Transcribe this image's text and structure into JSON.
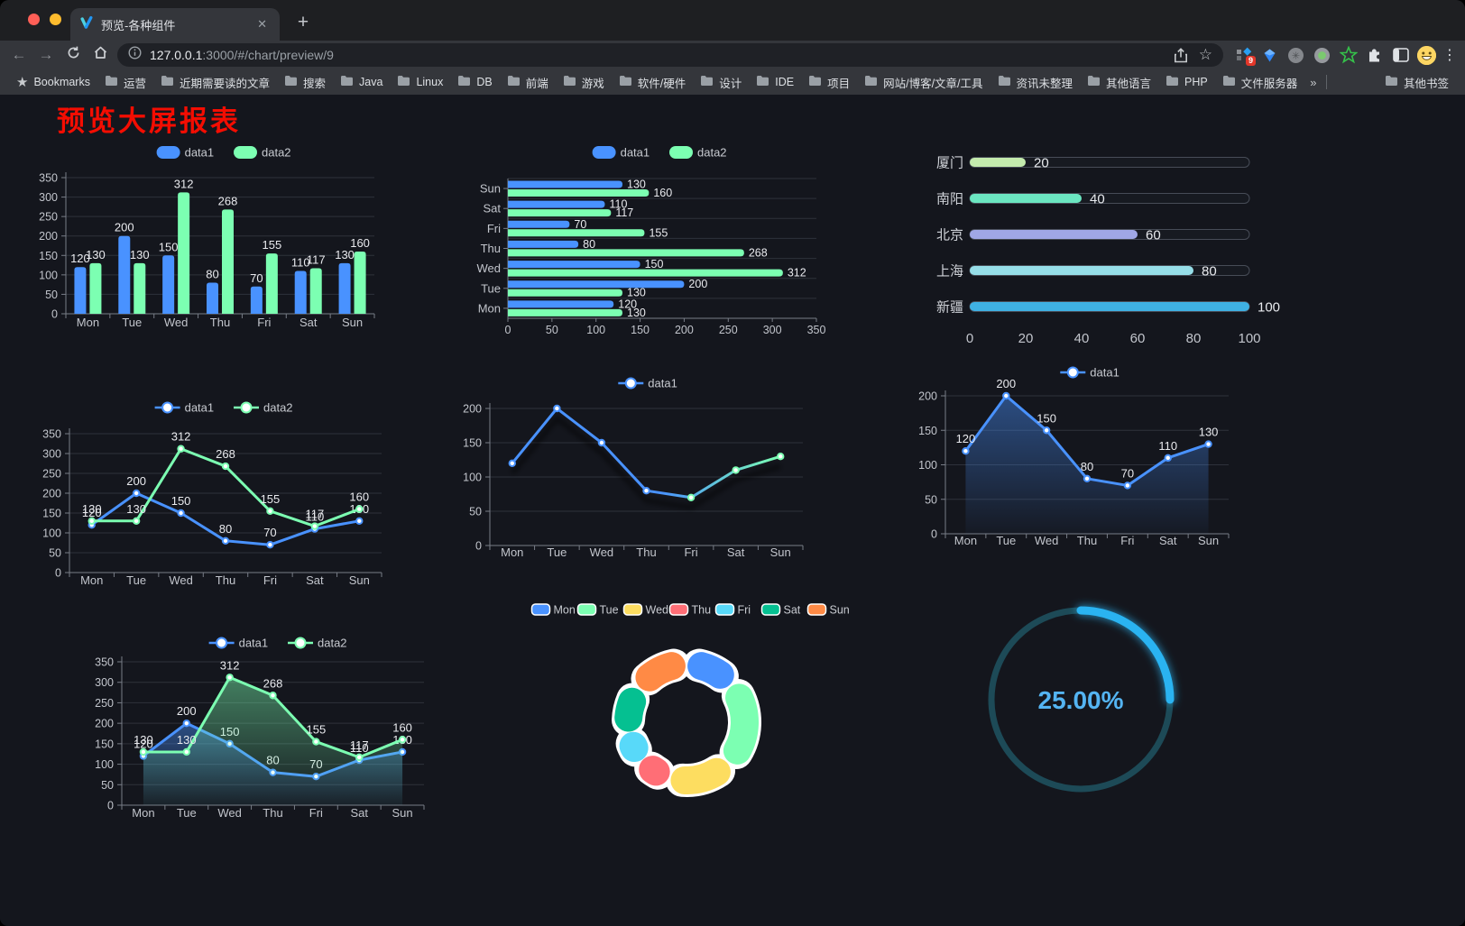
{
  "browser": {
    "tab_title": "预览-各种组件",
    "close_tab": "✕",
    "new_tab": "+",
    "url_host": "127.0.0.1",
    "url_rest": ":3000/#/chart/preview/9",
    "extension_badge": "9",
    "bookmarks_root": "Bookmarks",
    "bookmarks": [
      "运营",
      "近期需要读的文章",
      "搜索",
      "Java",
      "Linux",
      "DB",
      "前端",
      "游戏",
      "软件/硬件",
      "设计",
      "IDE",
      "项目",
      "网站/博客/文章/工具",
      "资讯未整理",
      "其他语言",
      "PHP",
      "文件服务器"
    ],
    "bookmarks_overflow": "»",
    "other_bookmarks": "其他书签"
  },
  "page": {
    "title": "预览大屏报表",
    "title_color": "#f40d02",
    "background": "#14161d"
  },
  "chart_data": [
    {
      "id": "bar-grouped",
      "type": "bar",
      "orientation": "vertical",
      "categories": [
        "Mon",
        "Tue",
        "Wed",
        "Thu",
        "Fri",
        "Sat",
        "Sun"
      ],
      "series": [
        {
          "name": "data1",
          "color": "#4992ff",
          "values": [
            120,
            200,
            150,
            80,
            70,
            110,
            130
          ]
        },
        {
          "name": "data2",
          "color": "#7cffb2",
          "values": [
            130,
            130,
            312,
            268,
            155,
            117,
            160
          ]
        }
      ],
      "ylim": [
        0,
        350
      ],
      "ytick_step": 50,
      "legend_position": "top",
      "value_labels": true,
      "grid": true
    },
    {
      "id": "bar-horizontal",
      "type": "bar",
      "orientation": "horizontal",
      "categories": [
        "Mon",
        "Tue",
        "Wed",
        "Thu",
        "Fri",
        "Sat",
        "Sun"
      ],
      "series": [
        {
          "name": "data1",
          "color": "#4992ff",
          "values": [
            120,
            200,
            150,
            80,
            70,
            110,
            130
          ]
        },
        {
          "name": "data2",
          "color": "#7cffb2",
          "values": [
            130,
            130,
            312,
            268,
            155,
            117,
            160
          ]
        }
      ],
      "xlim": [
        0,
        350
      ],
      "xtick_step": 50,
      "legend_position": "top",
      "value_labels": true,
      "grid": true
    },
    {
      "id": "progress-bars",
      "type": "bar",
      "orientation": "horizontal",
      "style": "progress-track",
      "items": [
        {
          "label": "厦门",
          "value": 20,
          "color": "#c4ebad"
        },
        {
          "label": "南阳",
          "value": 40,
          "color": "#6be6c1"
        },
        {
          "label": "北京",
          "value": 60,
          "color": "#a0a7e6"
        },
        {
          "label": "上海",
          "value": 80,
          "color": "#96dee8"
        },
        {
          "label": "新疆",
          "value": 100,
          "color": "#3fb1e3"
        }
      ],
      "xlim": [
        0,
        100
      ],
      "xticks": [
        0,
        20,
        40,
        60,
        80,
        100
      ],
      "value_labels": true
    },
    {
      "id": "line-two-series",
      "type": "line",
      "categories": [
        "Mon",
        "Tue",
        "Wed",
        "Thu",
        "Fri",
        "Sat",
        "Sun"
      ],
      "series": [
        {
          "name": "data1",
          "color": "#4992ff",
          "values": [
            120,
            200,
            150,
            80,
            70,
            110,
            130
          ]
        },
        {
          "name": "data2",
          "color": "#7cffb2",
          "values": [
            130,
            130,
            312,
            268,
            155,
            117,
            160
          ]
        }
      ],
      "ylim": [
        0,
        350
      ],
      "ytick_step": 50,
      "legend_position": "top",
      "value_labels": true,
      "grid": true
    },
    {
      "id": "line-gradient",
      "type": "line",
      "categories": [
        "Mon",
        "Tue",
        "Wed",
        "Thu",
        "Fri",
        "Sat",
        "Sun"
      ],
      "series": [
        {
          "name": "data1",
          "color": "#4992ff",
          "color_end": "#7cffb2",
          "values": [
            120,
            200,
            150,
            80,
            70,
            110,
            130
          ]
        }
      ],
      "ylim": [
        0,
        200
      ],
      "ytick_step": 50,
      "legend_position": "top",
      "value_labels": false,
      "grid": true
    },
    {
      "id": "line-area",
      "type": "area",
      "categories": [
        "Mon",
        "Tue",
        "Wed",
        "Thu",
        "Fri",
        "Sat",
        "Sun"
      ],
      "series": [
        {
          "name": "data1",
          "color": "#4992ff",
          "values": [
            120,
            200,
            150,
            80,
            70,
            110,
            130
          ]
        }
      ],
      "ylim": [
        0,
        200
      ],
      "ytick_step": 50,
      "legend_position": "top",
      "value_labels": true,
      "grid": true
    },
    {
      "id": "line-two-series-area",
      "type": "area",
      "categories": [
        "Mon",
        "Tue",
        "Wed",
        "Thu",
        "Fri",
        "Sat",
        "Sun"
      ],
      "series": [
        {
          "name": "data1",
          "color": "#4992ff",
          "values": [
            120,
            200,
            150,
            80,
            70,
            110,
            130
          ]
        },
        {
          "name": "data2",
          "color": "#7cffb2",
          "values": [
            130,
            130,
            312,
            268,
            155,
            117,
            160
          ]
        }
      ],
      "ylim": [
        0,
        350
      ],
      "ytick_step": 50,
      "legend_position": "top",
      "value_labels": true,
      "grid": true
    },
    {
      "id": "donut",
      "type": "pie",
      "inner_radius": "60%",
      "categories": [
        "Mon",
        "Tue",
        "Wed",
        "Thu",
        "Fri",
        "Sat",
        "Sun"
      ],
      "values": [
        120,
        200,
        150,
        80,
        70,
        110,
        130
      ],
      "colors": [
        "#4992ff",
        "#7cffb2",
        "#fddd60",
        "#ff6e76",
        "#58d9f9",
        "#05c091",
        "#ff8a45"
      ],
      "border_color": "#ffffff",
      "legend_position": "top"
    },
    {
      "id": "gauge",
      "type": "gauge",
      "value": 25,
      "max": 100,
      "label": "25.00%",
      "progress_color": "#29b3f1",
      "track_color": "#1d4a57",
      "text_color": "#54b4f2"
    }
  ]
}
